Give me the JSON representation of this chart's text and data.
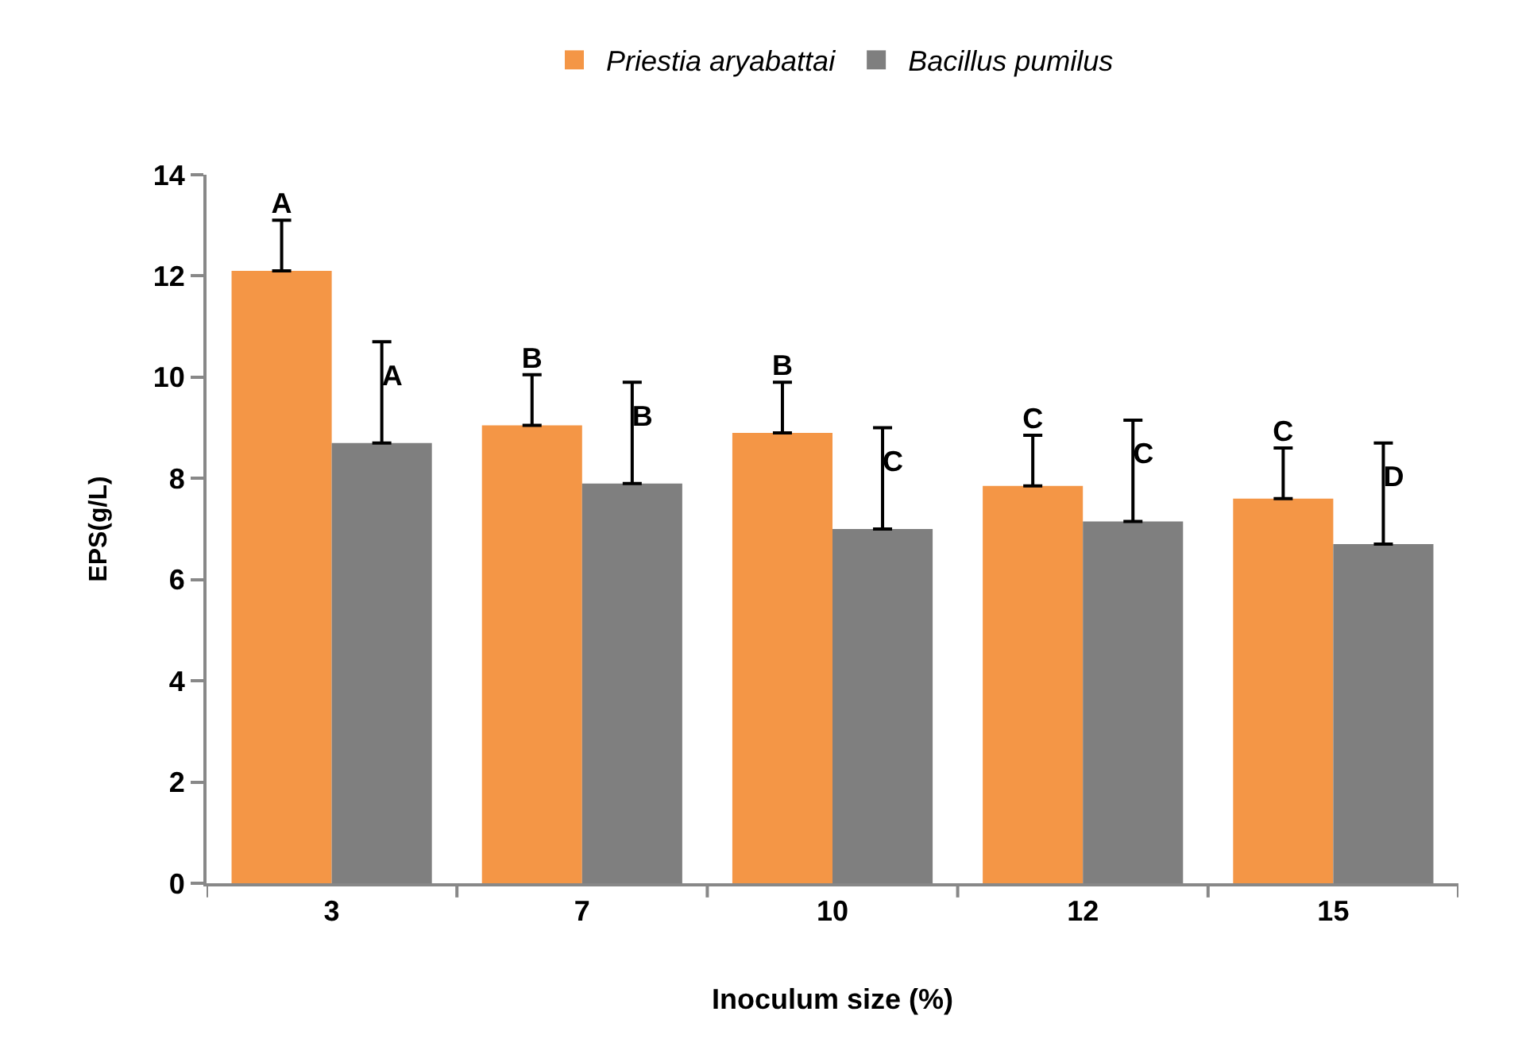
{
  "chart_data": {
    "type": "bar",
    "xlabel": "Inoculum size (%)",
    "ylabel": "EPS(g/L)",
    "categories": [
      "3",
      "7",
      "10",
      "12",
      "15"
    ],
    "series": [
      {
        "name": "Priestia aryabattai",
        "color": "#f49646",
        "values": [
          12.1,
          9.05,
          8.9,
          7.85,
          7.6
        ],
        "errors": [
          [
            12.1,
            13.1
          ],
          [
            9.05,
            10.05
          ],
          [
            8.9,
            9.9
          ],
          [
            7.85,
            8.85
          ],
          [
            7.6,
            8.6
          ]
        ],
        "value_labels": [
          "A",
          "B",
          "B",
          "C",
          "C"
        ]
      },
      {
        "name": "Bacillus pumilus",
        "color": "#7f7f7f",
        "values": [
          8.7,
          7.9,
          7.0,
          7.15,
          6.7
        ],
        "errors": [
          [
            8.7,
            10.7
          ],
          [
            7.9,
            9.9
          ],
          [
            7.0,
            9.0
          ],
          [
            7.15,
            9.15
          ],
          [
            6.7,
            8.7
          ]
        ],
        "value_labels": [
          "A",
          "B",
          "C",
          "C",
          "D"
        ]
      }
    ],
    "ylim": [
      0,
      14
    ],
    "yticks": [
      0,
      2,
      4,
      6,
      8,
      10,
      12,
      14
    ],
    "grid": false,
    "legend": "top"
  }
}
